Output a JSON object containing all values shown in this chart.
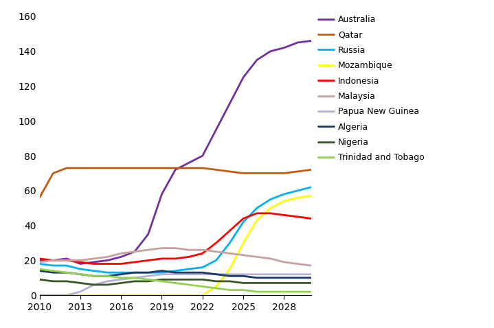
{
  "years": [
    2010,
    2011,
    2012,
    2013,
    2014,
    2015,
    2016,
    2017,
    2018,
    2019,
    2020,
    2021,
    2022,
    2023,
    2024,
    2025,
    2026,
    2027,
    2028,
    2029,
    2030
  ],
  "series": {
    "Australia": {
      "color": "#7030A0",
      "values": [
        20,
        20,
        21,
        18,
        19,
        20,
        22,
        25,
        35,
        58,
        72,
        76,
        80,
        95,
        110,
        125,
        135,
        140,
        142,
        145,
        146
      ]
    },
    "Qatar": {
      "color": "#C55A11",
      "values": [
        56,
        70,
        73,
        73,
        73,
        73,
        73,
        73,
        73,
        73,
        73,
        73,
        73,
        72,
        71,
        70,
        70,
        70,
        70,
        71,
        72
      ]
    },
    "Russia": {
      "color": "#00B0F0",
      "values": [
        18,
        17,
        17,
        15,
        14,
        13,
        13,
        13,
        13,
        13,
        14,
        15,
        16,
        20,
        30,
        42,
        50,
        55,
        58,
        60,
        62
      ]
    },
    "Mozambique": {
      "color": "#FFFF00",
      "values": [
        0,
        0,
        0,
        0,
        0,
        0,
        0,
        0,
        0,
        0,
        0,
        0,
        0,
        5,
        15,
        30,
        43,
        50,
        54,
        56,
        57
      ]
    },
    "Indonesia": {
      "color": "#FF0000",
      "values": [
        21,
        20,
        20,
        19,
        18,
        18,
        18,
        19,
        20,
        21,
        21,
        22,
        24,
        30,
        37,
        44,
        47,
        47,
        46,
        45,
        44
      ]
    },
    "Malaysia": {
      "color": "#C9A0A0",
      "values": [
        19,
        20,
        20,
        20,
        21,
        22,
        24,
        25,
        26,
        27,
        27,
        26,
        26,
        25,
        24,
        23,
        22,
        21,
        19,
        18,
        17
      ]
    },
    "Papua New Guinea": {
      "color": "#B4B0D4",
      "values": [
        0,
        0,
        0,
        2,
        6,
        8,
        9,
        10,
        11,
        12,
        12,
        12,
        12,
        12,
        12,
        12,
        12,
        12,
        12,
        12,
        12
      ]
    },
    "Algeria": {
      "color": "#1F3864",
      "values": [
        14,
        13,
        13,
        12,
        11,
        11,
        12,
        13,
        13,
        14,
        13,
        13,
        13,
        12,
        11,
        11,
        10,
        10,
        10,
        10,
        10
      ]
    },
    "Nigeria": {
      "color": "#375623",
      "values": [
        9,
        8,
        8,
        7,
        6,
        6,
        7,
        8,
        8,
        9,
        9,
        9,
        9,
        8,
        8,
        7,
        7,
        7,
        7,
        7,
        7
      ]
    },
    "Trinidad and Tobago": {
      "color": "#92D050",
      "values": [
        15,
        14,
        13,
        12,
        11,
        11,
        10,
        10,
        9,
        8,
        7,
        6,
        5,
        4,
        3,
        3,
        2,
        2,
        2,
        2,
        2
      ]
    }
  },
  "xlim": [
    2010,
    2030
  ],
  "ylim": [
    0,
    160
  ],
  "yticks": [
    0,
    20,
    40,
    60,
    80,
    100,
    120,
    140,
    160
  ],
  "xticks": [
    2010,
    2013,
    2016,
    2019,
    2022,
    2025,
    2028
  ],
  "legend_order": [
    "Australia",
    "Qatar",
    "Russia",
    "Mozambique",
    "Indonesia",
    "Malaysia",
    "Papua New Guinea",
    "Algeria",
    "Nigeria",
    "Trinidad and Tobago"
  ],
  "background_color": "#FFFFFF",
  "linewidth": 2.0,
  "tick_fontsize": 10,
  "legend_fontsize": 9
}
